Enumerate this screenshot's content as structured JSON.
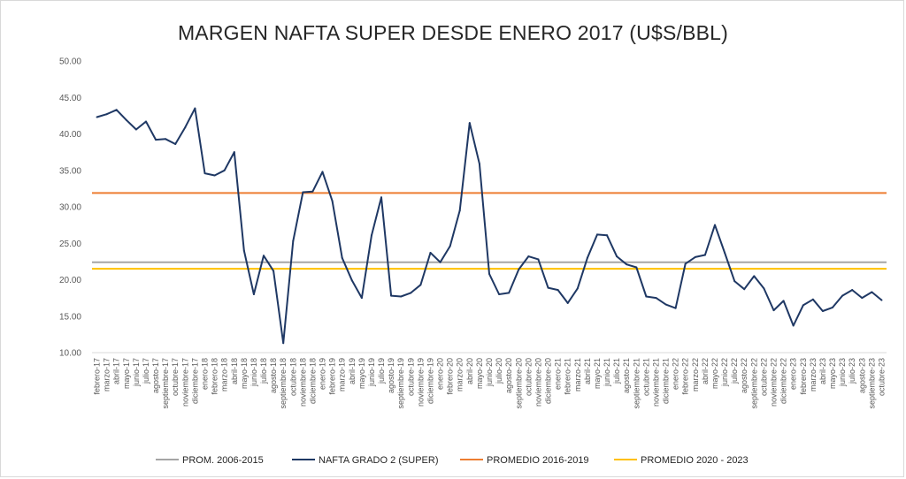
{
  "chart_data": {
    "type": "line",
    "title": "MARGEN NAFTA SUPER DESDE ENERO 2017 (U$S/BBL)",
    "ylim": [
      10,
      50
    ],
    "yticks": [
      "10.00",
      "15.00",
      "20.00",
      "25.00",
      "30.00",
      "35.00",
      "40.00",
      "45.00",
      "50.00"
    ],
    "grid": false,
    "legend_position": "bottom",
    "categories": [
      "febrero-17",
      "marzo-17",
      "abril-17",
      "mayo-17",
      "junio-17",
      "julio-17",
      "agosto-17",
      "septiembre-17",
      "octubre-17",
      "noviembre-17",
      "diciembre-17",
      "enero-18",
      "febrero-18",
      "marzo-18",
      "abril-18",
      "mayo-18",
      "junio-18",
      "julio-18",
      "agosto-18",
      "septiembre-18",
      "octubre-18",
      "noviembre-18",
      "diciembre-18",
      "enero-19",
      "febrero-19",
      "marzo-19",
      "abril-19",
      "mayo-19",
      "junio-19",
      "julio-19",
      "agosto-19",
      "septiembre-19",
      "octubre-19",
      "noviembre-19",
      "diciembre-19",
      "enero-20",
      "febrero-20",
      "marzo-20",
      "abril-20",
      "mayo-20",
      "junio-20",
      "julio-20",
      "agosto-20",
      "septiembre-20",
      "octubre-20",
      "noviembre-20",
      "diciembre-20",
      "enero-21",
      "febrero-21",
      "marzo-21",
      "abril-21",
      "mayo-21",
      "junio-21",
      "julio-21",
      "agosto-21",
      "septiembre-21",
      "octubre-21",
      "noviembre-21",
      "diciembre-21",
      "enero-22",
      "febrero-22",
      "marzo-22",
      "abril-22",
      "mayo-22",
      "junio-22",
      "julio-22",
      "agosto-22",
      "septiembre-22",
      "octubre-22",
      "noviembre-22",
      "diciembre-22",
      "enero-23",
      "febrero-23",
      "marzo-23",
      "abril-23",
      "mayo-23",
      "junio-23",
      "julio-23",
      "agosto-23",
      "septiembre-23",
      "octubre-23"
    ],
    "series": [
      {
        "name": "NAFTA GRADO 2 (SUPER)",
        "color": "#1f3864",
        "kind": "line",
        "values": [
          42.3,
          42.7,
          43.3,
          41.9,
          40.6,
          41.7,
          39.2,
          39.3,
          38.6,
          40.9,
          43.5,
          34.6,
          34.3,
          35.0,
          37.5,
          24.0,
          18.0,
          23.3,
          21.2,
          11.3,
          25.3,
          32.0,
          32.1,
          34.8,
          30.8,
          23.0,
          19.9,
          17.5,
          26.1,
          31.3,
          17.8,
          17.7,
          18.2,
          19.3,
          23.7,
          22.4,
          24.6,
          29.5,
          41.5,
          35.9,
          20.8,
          18.0,
          18.2,
          21.4,
          23.2,
          22.8,
          18.9,
          18.6,
          16.8,
          18.8,
          23.0,
          26.2,
          26.1,
          23.2,
          22.1,
          21.7,
          17.7,
          17.5,
          16.6,
          16.1,
          22.2,
          23.1,
          23.4,
          27.5,
          23.7,
          19.8,
          18.7,
          20.5,
          18.8,
          15.8,
          17.1,
          13.7,
          16.5,
          17.3,
          15.7,
          16.2,
          17.8,
          18.6,
          17.5,
          18.3,
          17.2
        ]
      },
      {
        "name": "PROM. 2006-2015",
        "color": "#a5a5a5",
        "kind": "hline",
        "value": 22.4
      },
      {
        "name": "PROMEDIO 2016-2019",
        "color": "#ed7d31",
        "kind": "hline",
        "value": 31.9
      },
      {
        "name": "PROMEDIO 2020 - 2023",
        "color": "#ffc000",
        "kind": "hline",
        "value": 21.5
      }
    ],
    "legend_order": [
      "PROM. 2006-2015",
      "NAFTA GRADO 2 (SUPER)",
      "PROMEDIO 2016-2019",
      "PROMEDIO 2020 - 2023"
    ]
  }
}
